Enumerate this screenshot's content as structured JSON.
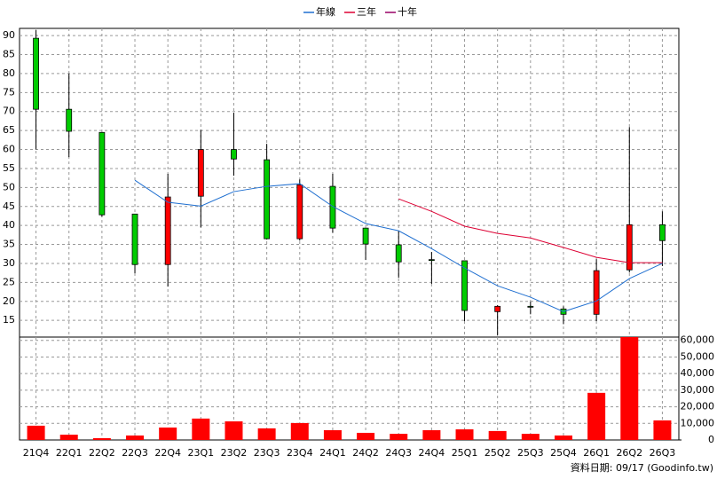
{
  "chart_data": [
    {
      "type": "candlestick",
      "categories": [
        "21Q4",
        "22Q1",
        "22Q2",
        "22Q3",
        "22Q4",
        "23Q1",
        "23Q2",
        "23Q3",
        "23Q4",
        "24Q1",
        "24Q2",
        "24Q3",
        "24Q4",
        "25Q1",
        "25Q2",
        "25Q3",
        "25Q4",
        "26Q1",
        "26Q2",
        "26Q3"
      ],
      "open": [
        89.3,
        70.6,
        64.5,
        43.0,
        29.7,
        47.7,
        60.0,
        57.3,
        36.5,
        50.3,
        39.3,
        34.9,
        31.0,
        30.7,
        17.3,
        18.7,
        18.0,
        16.6,
        28.3,
        40.2
      ],
      "high": [
        91.4,
        80.0,
        64.5,
        43.0,
        53.6,
        65.2,
        69.7,
        61.5,
        52.1,
        53.6,
        39.3,
        38.6,
        33.0,
        30.7,
        19.0,
        19.9,
        18.7,
        31.1,
        65.9,
        43.7
      ],
      "low": [
        60.0,
        58.0,
        42.3,
        27.4,
        23.9,
        39.5,
        53.1,
        36.3,
        36.0,
        38.1,
        30.9,
        26.2,
        24.6,
        14.8,
        11.0,
        16.6,
        14.0,
        14.8,
        27.6,
        29.3
      ],
      "close": [
        70.6,
        64.8,
        42.8,
        29.7,
        47.5,
        60.0,
        57.5,
        36.5,
        50.7,
        39.3,
        35.1,
        30.4,
        30.8,
        17.6,
        18.7,
        18.6,
        16.6,
        28.1,
        40.2,
        36.0
      ],
      "up_color": "#ff0000",
      "down_color": "#00cc00",
      "series": [
        {
          "name": "年線",
          "color": "#1f6fd0",
          "values": [
            null,
            null,
            null,
            51.9,
            46.1,
            45.1,
            48.9,
            50.3,
            51.0,
            45.0,
            40.5,
            38.6,
            33.9,
            28.8,
            24.1,
            21.1,
            17.3,
            20.1,
            26.0,
            30.0
          ]
        },
        {
          "name": "三年",
          "color": "#dd0033",
          "values": [
            null,
            null,
            null,
            null,
            null,
            null,
            null,
            null,
            null,
            null,
            null,
            47.0,
            43.7,
            39.8,
            37.9,
            36.7,
            34.2,
            31.6,
            30.2,
            30.2
          ]
        },
        {
          "name": "十年",
          "color": "#990066",
          "values": [
            null,
            null,
            null,
            null,
            null,
            null,
            null,
            null,
            null,
            null,
            null,
            null,
            null,
            null,
            null,
            null,
            null,
            null,
            null,
            null
          ]
        }
      ],
      "ylim": [
        10.6,
        91.9
      ],
      "yticks": [
        15,
        20,
        25,
        30,
        35,
        40,
        45,
        50,
        55,
        60,
        65,
        70,
        75,
        80,
        85,
        90
      ],
      "grid": true
    },
    {
      "type": "bar",
      "color": "#ff0000",
      "values": [
        8600,
        3200,
        1100,
        2700,
        7500,
        12900,
        11200,
        7000,
        10200,
        5900,
        4300,
        3700,
        5900,
        6400,
        5400,
        3700,
        2700,
        28400,
        62000,
        11800
      ],
      "ylim": [
        0,
        62000
      ],
      "yticks": [
        0,
        {
          "value": 10000,
          "label": "10,000"
        },
        {
          "value": 20000,
          "label": "20,000"
        },
        {
          "value": 30000,
          "label": "30,000"
        },
        {
          "value": 40000,
          "label": "40,000"
        },
        {
          "value": 50000,
          "label": "50,000"
        },
        {
          "value": 60000,
          "label": "60,000"
        }
      ],
      "grid": true
    }
  ],
  "footer": "資料日期: 09/17 (Goodinfo.tw)"
}
